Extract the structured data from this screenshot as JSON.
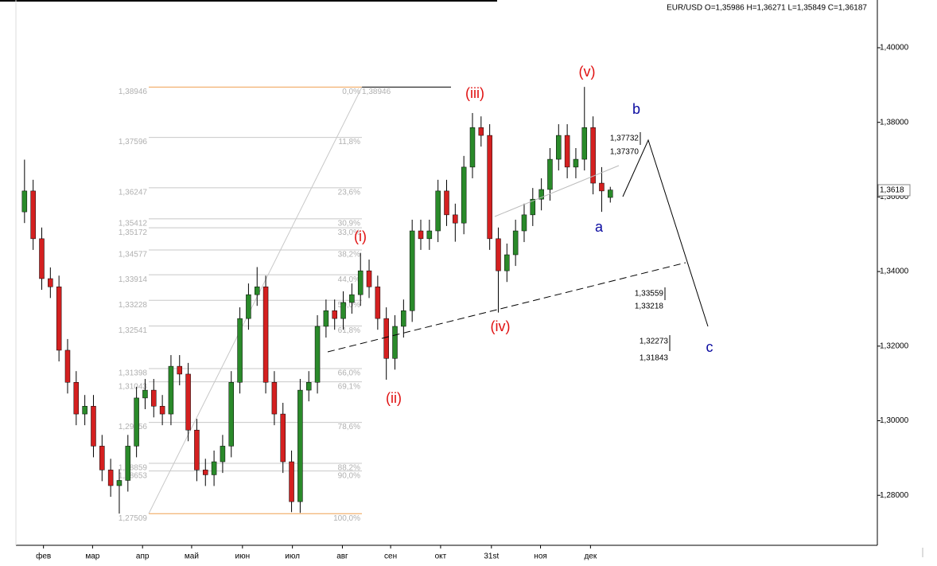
{
  "chart_data": {
    "type": "candlestick",
    "header": "EUR/USD O=1,35986 H=1,36271 L=1,35849 C=1,36187",
    "x": [
      1,
      2,
      3,
      4,
      5,
      6,
      7,
      8,
      9,
      10,
      11,
      12,
      13,
      14,
      15,
      16,
      17,
      18,
      19,
      20,
      21,
      22,
      23,
      24,
      25,
      26,
      27,
      28,
      29,
      30,
      31,
      32,
      33,
      34,
      35,
      36,
      37,
      38,
      39,
      40,
      41,
      42,
      43,
      44,
      45,
      46,
      47,
      48,
      49,
      50,
      51,
      52,
      53,
      54,
      55,
      56,
      57,
      58,
      59,
      60,
      61,
      62,
      63,
      64,
      65,
      66,
      67,
      68,
      69
    ],
    "open": [
      1.356,
      1.3616,
      1.3488,
      1.3381,
      1.3359,
      1.3189,
      1.3103,
      1.3018,
      1.3039,
      1.2932,
      1.2868,
      1.2826,
      1.284,
      1.2932,
      1.3061,
      1.3082,
      1.3039,
      1.3018,
      1.3146,
      1.3125,
      1.2975,
      1.2868,
      1.2855,
      1.289,
      1.2932,
      1.3103,
      1.3274,
      1.3338,
      1.3359,
      1.3103,
      1.3018,
      1.289,
      1.2783,
      1.3082,
      1.3103,
      1.3253,
      1.3295,
      1.3274,
      1.3317,
      1.3338,
      1.3402,
      1.3359,
      1.3274,
      1.3167,
      1.3253,
      1.3295,
      1.3509,
      1.3488,
      1.3509,
      1.3616,
      1.3552,
      1.353,
      1.368,
      1.3786,
      1.3765,
      1.3488,
      1.3402,
      1.3445,
      1.3509,
      1.3552,
      1.3594,
      1.362,
      1.3701,
      1.3765,
      1.368,
      1.3701,
      1.3786,
      1.3637,
      1.35986
    ],
    "high": [
      1.37,
      1.3646,
      1.3518,
      1.3411,
      1.3389,
      1.3219,
      1.3133,
      1.3069,
      1.3069,
      1.2962,
      1.2898,
      1.287,
      1.2962,
      1.3091,
      1.3112,
      1.3112,
      1.3069,
      1.3176,
      1.3176,
      1.3155,
      1.3005,
      1.2898,
      1.292,
      1.2962,
      1.3133,
      1.3304,
      1.3368,
      1.3412,
      1.3389,
      1.3133,
      1.3048,
      1.292,
      1.3112,
      1.3133,
      1.3283,
      1.3325,
      1.3325,
      1.3347,
      1.3368,
      1.345,
      1.3432,
      1.3389,
      1.3304,
      1.3283,
      1.3325,
      1.3539,
      1.3539,
      1.3539,
      1.3646,
      1.3646,
      1.3582,
      1.371,
      1.3825,
      1.3816,
      1.3795,
      1.3518,
      1.3475,
      1.3539,
      1.3582,
      1.3624,
      1.365,
      1.3731,
      1.3795,
      1.3795,
      1.3731,
      1.3895,
      1.3816,
      1.368,
      1.36271
    ],
    "low": [
      1.353,
      1.3458,
      1.3351,
      1.3329,
      1.3159,
      1.3073,
      1.2988,
      1.2988,
      1.2902,
      1.2838,
      1.2796,
      1.2751,
      1.281,
      1.2902,
      1.3031,
      1.3009,
      1.2988,
      1.2988,
      1.3095,
      1.2945,
      1.2838,
      1.2825,
      1.2825,
      1.286,
      1.2902,
      1.3073,
      1.3244,
      1.3308,
      1.3073,
      1.2988,
      1.286,
      1.2755,
      1.2753,
      1.3052,
      1.3073,
      1.3223,
      1.3244,
      1.3244,
      1.3287,
      1.3308,
      1.3329,
      1.3244,
      1.311,
      1.3137,
      1.3223,
      1.3265,
      1.3458,
      1.3458,
      1.3479,
      1.3522,
      1.348,
      1.35,
      1.365,
      1.3735,
      1.3458,
      1.329,
      1.3372,
      1.3415,
      1.3479,
      1.3522,
      1.3564,
      1.359,
      1.3671,
      1.365,
      1.365,
      1.3671,
      1.3607,
      1.356,
      1.35849
    ],
    "close": [
      1.3616,
      1.3488,
      1.3381,
      1.3359,
      1.3189,
      1.3103,
      1.3018,
      1.3039,
      1.2932,
      1.2868,
      1.2826,
      1.284,
      1.2932,
      1.3061,
      1.3082,
      1.3039,
      1.3018,
      1.3146,
      1.3125,
      1.2975,
      1.2868,
      1.2855,
      1.289,
      1.2932,
      1.3103,
      1.3274,
      1.3338,
      1.3359,
      1.3103,
      1.3018,
      1.289,
      1.2783,
      1.3082,
      1.3103,
      1.3253,
      1.3295,
      1.3274,
      1.3317,
      1.3338,
      1.3402,
      1.3359,
      1.3274,
      1.3167,
      1.3253,
      1.3295,
      1.3509,
      1.3488,
      1.3509,
      1.3616,
      1.3552,
      1.353,
      1.368,
      1.3786,
      1.3765,
      1.3488,
      1.3402,
      1.3445,
      1.3509,
      1.3552,
      1.3594,
      1.362,
      1.3701,
      1.3765,
      1.368,
      1.3701,
      1.3786,
      1.3637,
      1.3616,
      1.36187
    ],
    "up_color": "#2a8a2a",
    "down_color": "#d42020",
    "xlim": [
      0,
      100
    ],
    "xticks": [
      {
        "value": 3.2,
        "label": "фев"
      },
      {
        "value": 8.9,
        "label": "мар"
      },
      {
        "value": 14.7,
        "label": "апр"
      },
      {
        "value": 20.4,
        "label": "май"
      },
      {
        "value": 26.3,
        "label": "июн"
      },
      {
        "value": 32.1,
        "label": "июл"
      },
      {
        "value": 37.9,
        "label": "авг"
      },
      {
        "value": 43.5,
        "label": "сен"
      },
      {
        "value": 49.3,
        "label": "окт"
      },
      {
        "value": 55.2,
        "label": "31st"
      },
      {
        "value": 60.9,
        "label": "ноя"
      },
      {
        "value": 66.7,
        "label": "дек"
      }
    ],
    "ylim": [
      1.2666,
      1.4128
    ],
    "yticks": [
      {
        "value": 1.28,
        "label": "1,28000"
      },
      {
        "value": 1.3,
        "label": "1,30000"
      },
      {
        "value": 1.32,
        "label": "1,32000"
      },
      {
        "value": 1.34,
        "label": "1,34000"
      },
      {
        "value": 1.36,
        "label": "1,36000"
      },
      {
        "value": 1.38,
        "label": "1,38000"
      },
      {
        "value": 1.4,
        "label": "1,40000"
      }
    ],
    "last_price": {
      "value": 1.3618,
      "label": "1,3618"
    },
    "fibonacci": [
      {
        "value": 1.38946,
        "label": "1,38946",
        "percent": "0,0%"
      },
      {
        "value": 1.37596,
        "label": "1,37596",
        "percent": "11,8%"
      },
      {
        "value": 1.36247,
        "label": "1,36247",
        "percent": "23,6%"
      },
      {
        "value": 1.35412,
        "label": "1,35412",
        "percent": "30,9%"
      },
      {
        "value": 1.35172,
        "label": "1,35172",
        "percent": "33,0%"
      },
      {
        "value": 1.34577,
        "label": "1,34577",
        "percent": "38,2%"
      },
      {
        "value": 1.33914,
        "label": "1,33914",
        "percent": "44,0%"
      },
      {
        "value": 1.33228,
        "label": "1,33228",
        "percent": "50,0%"
      },
      {
        "value": 1.32541,
        "label": "1,32541",
        "percent": "61,8%"
      },
      {
        "value": 1.31398,
        "label": "1,31398",
        "percent": "66,0%"
      },
      {
        "value": 1.31043,
        "label": "1,31043",
        "percent": "69,1%"
      },
      {
        "value": 1.29956,
        "label": "1,29956",
        "percent": "78,6%"
      },
      {
        "value": 1.28859,
        "label": "1,28859",
        "percent": "88,2%"
      },
      {
        "value": 1.28653,
        "label": "1,28653",
        "percent": "90,0%"
      },
      {
        "value": 1.27509,
        "label": "1,27509",
        "percent": "100,0%"
      }
    ],
    "wave_labels": [
      {
        "text": "(i)",
        "color": "#e01010"
      },
      {
        "text": "(ii)",
        "color": "#e01010"
      },
      {
        "text": "(iii)",
        "color": "#e01010"
      },
      {
        "text": "(iv)",
        "color": "#e01010"
      },
      {
        "text": "(v)",
        "color": "#e01010"
      },
      {
        "text": "a",
        "color": "#0a0aa0"
      },
      {
        "text": "b",
        "color": "#0a0aa0"
      },
      {
        "text": "c",
        "color": "#0a0aa0"
      }
    ],
    "targets": [
      "1,37732",
      "1,37370",
      "1,33559",
      "1,33218",
      "1,32273",
      "1,31843"
    ]
  }
}
